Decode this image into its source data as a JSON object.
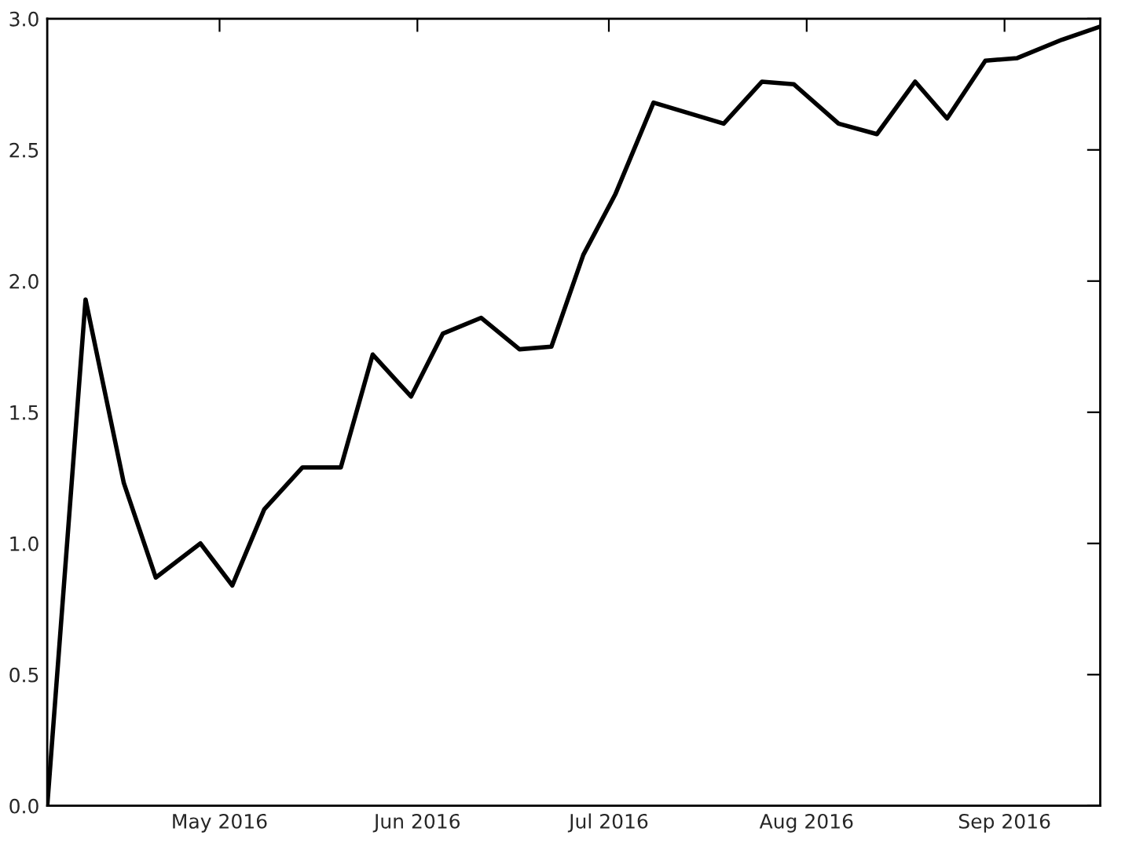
{
  "chart_data": {
    "type": "line",
    "x": [
      "2016-04-04",
      "2016-04-10",
      "2016-04-16",
      "2016-04-21",
      "2016-04-28",
      "2016-05-03",
      "2016-05-08",
      "2016-05-14",
      "2016-05-20",
      "2016-05-25",
      "2016-05-31",
      "2016-06-05",
      "2016-06-11",
      "2016-06-17",
      "2016-06-22",
      "2016-06-27",
      "2016-07-02",
      "2016-07-08",
      "2016-07-19",
      "2016-07-25",
      "2016-07-30",
      "2016-08-06",
      "2016-08-12",
      "2016-08-18",
      "2016-08-23",
      "2016-08-29",
      "2016-09-03",
      "2016-09-10",
      "2016-09-16"
    ],
    "series": [
      {
        "color": "#000000",
        "values": [
          0,
          1.93,
          1.23,
          0.87,
          1.0,
          0.84,
          1.13,
          1.29,
          1.29,
          1.72,
          1.56,
          1.8,
          1.86,
          1.74,
          1.75,
          2.1,
          2.33,
          2.68,
          2.6,
          2.76,
          2.75,
          2.6,
          2.56,
          2.76,
          2.62,
          2.84,
          2.85,
          2.92,
          2.97
        ]
      }
    ],
    "xlim": [
      "2016-04-04",
      "2016-09-16"
    ],
    "xticks": [
      {
        "value": "2016-05-01",
        "label": "May 2016"
      },
      {
        "value": "2016-06-01",
        "label": "Jun 2016"
      },
      {
        "value": "2016-07-01",
        "label": "Jul 2016"
      },
      {
        "value": "2016-08-01",
        "label": "Aug 2016"
      },
      {
        "value": "2016-09-01",
        "label": "Sep 2016"
      }
    ],
    "ylim": [
      0,
      3
    ],
    "yticks": [
      {
        "value": 0,
        "label": "0.0"
      },
      {
        "value": 0.5,
        "label": "0.5"
      },
      {
        "value": 1,
        "label": "1.0"
      },
      {
        "value": 1.5,
        "label": "1.5"
      },
      {
        "value": 2,
        "label": "2.0"
      },
      {
        "value": 2.5,
        "label": "2.5"
      },
      {
        "value": 3,
        "label": "3.0"
      }
    ],
    "grid": false,
    "marker": "none",
    "line_style": "solid"
  }
}
